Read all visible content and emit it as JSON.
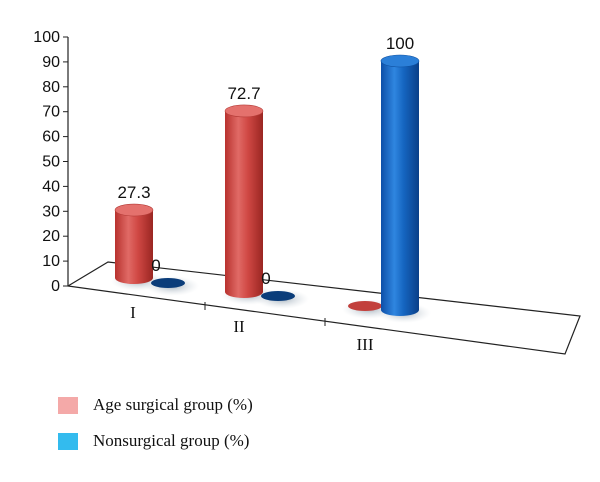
{
  "chart_data": {
    "type": "bar",
    "style": "3d-cylinder",
    "categories": [
      "I",
      "II",
      "III"
    ],
    "ylim": [
      0,
      100
    ],
    "yticks": [
      0,
      10,
      20,
      30,
      40,
      50,
      60,
      70,
      80,
      90,
      100
    ],
    "grid": false,
    "legend_position": "bottom-left",
    "series": [
      {
        "name": "Age surgical group (%)",
        "values": [
          27.3,
          72.7,
          0
        ],
        "labels": [
          "27.3",
          "72.7",
          null
        ],
        "color": "#d9534f",
        "legend_color": "#f4a9a8"
      },
      {
        "name": "Nonsurgical group (%)",
        "values": [
          0,
          0,
          100
        ],
        "labels": [
          "0",
          "0",
          "100"
        ],
        "color": "#1565c0",
        "legend_color": "#33bbee"
      }
    ]
  }
}
